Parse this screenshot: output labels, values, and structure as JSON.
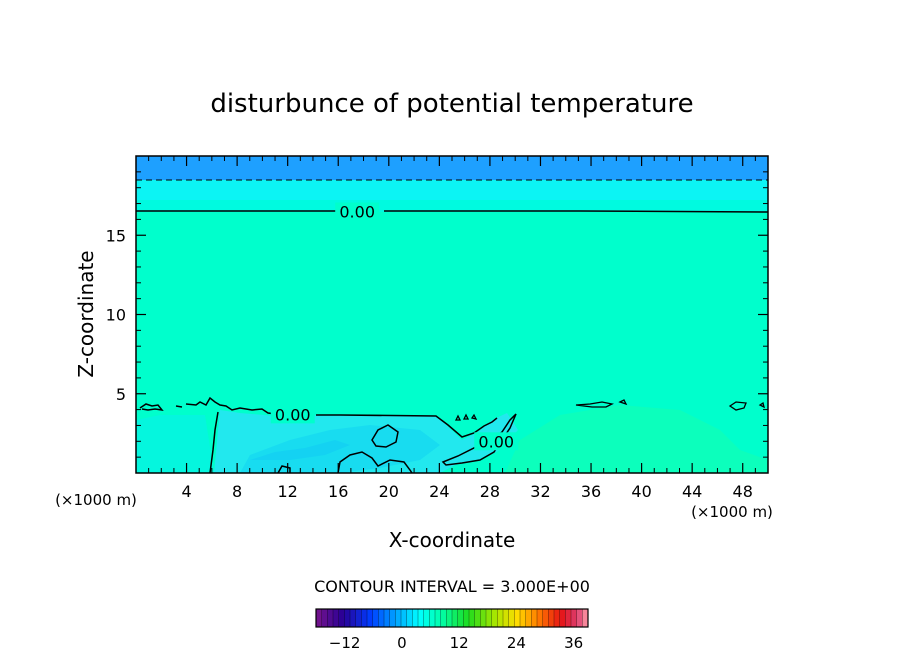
{
  "chart_data": {
    "type": "heatmap",
    "title": "disturbunce of potential temperature",
    "xlabel": "X-coordinate",
    "ylabel": "Z-coordinate",
    "x_unit_left": "(×1000 m)",
    "x_unit_right": "(×1000 m)",
    "xlim": [
      0,
      50
    ],
    "ylim": [
      0,
      20
    ],
    "x_ticks": [
      4,
      8,
      12,
      16,
      20,
      24,
      28,
      32,
      36,
      40,
      44,
      48
    ],
    "y_ticks": [
      5,
      10,
      15
    ],
    "contour_interval_text": "CONTOUR INTERVAL = 3.000E+00",
    "contour_labels": [
      {
        "text": "0.00",
        "x": 17.5,
        "z": 16.5
      },
      {
        "text": "0.00",
        "x": 12.4,
        "z": 3.7
      },
      {
        "text": "0.00",
        "x": 28.5,
        "z": 2.0
      }
    ],
    "colorbar": {
      "min": -18,
      "max": 39,
      "ticks": [
        -12,
        0,
        12,
        24,
        36
      ],
      "tick_labels": [
        "−12",
        "0",
        "12",
        "24",
        "36"
      ]
    },
    "bands": [
      {
        "z0": 18.5,
        "z1": 20.0,
        "value": -6
      },
      {
        "z0": 17.3,
        "z1": 18.5,
        "value": -3
      },
      {
        "z0": 16.5,
        "z1": 17.3,
        "value": -1.5
      },
      {
        "z0": 0.0,
        "z1": 16.5,
        "value": 0
      }
    ],
    "cool_region_value": -2,
    "warm_region_value": 1,
    "colors": {
      "background_field": "#00ffcc",
      "cool_field": "#22e8ee",
      "upper_band": "#0cf4f4",
      "top_band": "#1ea0ff"
    }
  }
}
